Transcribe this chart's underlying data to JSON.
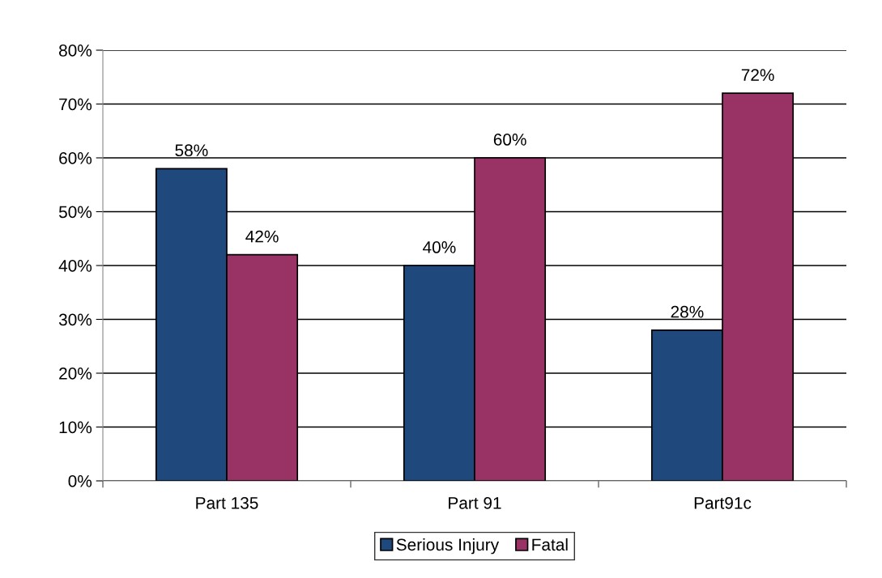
{
  "chart_data": {
    "type": "bar",
    "categories": [
      "Part 135",
      "Part 91",
      "Part91c"
    ],
    "series": [
      {
        "name": "Serious Injury",
        "color": "#1f497d",
        "values": [
          58,
          40,
          28
        ],
        "value_labels": [
          "58%",
          "40%",
          "28%"
        ]
      },
      {
        "name": "Fatal",
        "color": "#993366",
        "values": [
          42,
          60,
          72
        ],
        "value_labels": [
          "42%",
          "60%",
          "72%"
        ]
      }
    ],
    "ylim": [
      0,
      80
    ],
    "yticks": [
      {
        "value": 0,
        "label": "0%"
      },
      {
        "value": 10,
        "label": "10%"
      },
      {
        "value": 20,
        "label": "20%"
      },
      {
        "value": 30,
        "label": "30%"
      },
      {
        "value": 40,
        "label": "40%"
      },
      {
        "value": 50,
        "label": "50%"
      },
      {
        "value": 60,
        "label": "60%"
      },
      {
        "value": 70,
        "label": "70%"
      },
      {
        "value": 80,
        "label": "80%"
      }
    ],
    "grid": "y",
    "legend": "bottom"
  }
}
